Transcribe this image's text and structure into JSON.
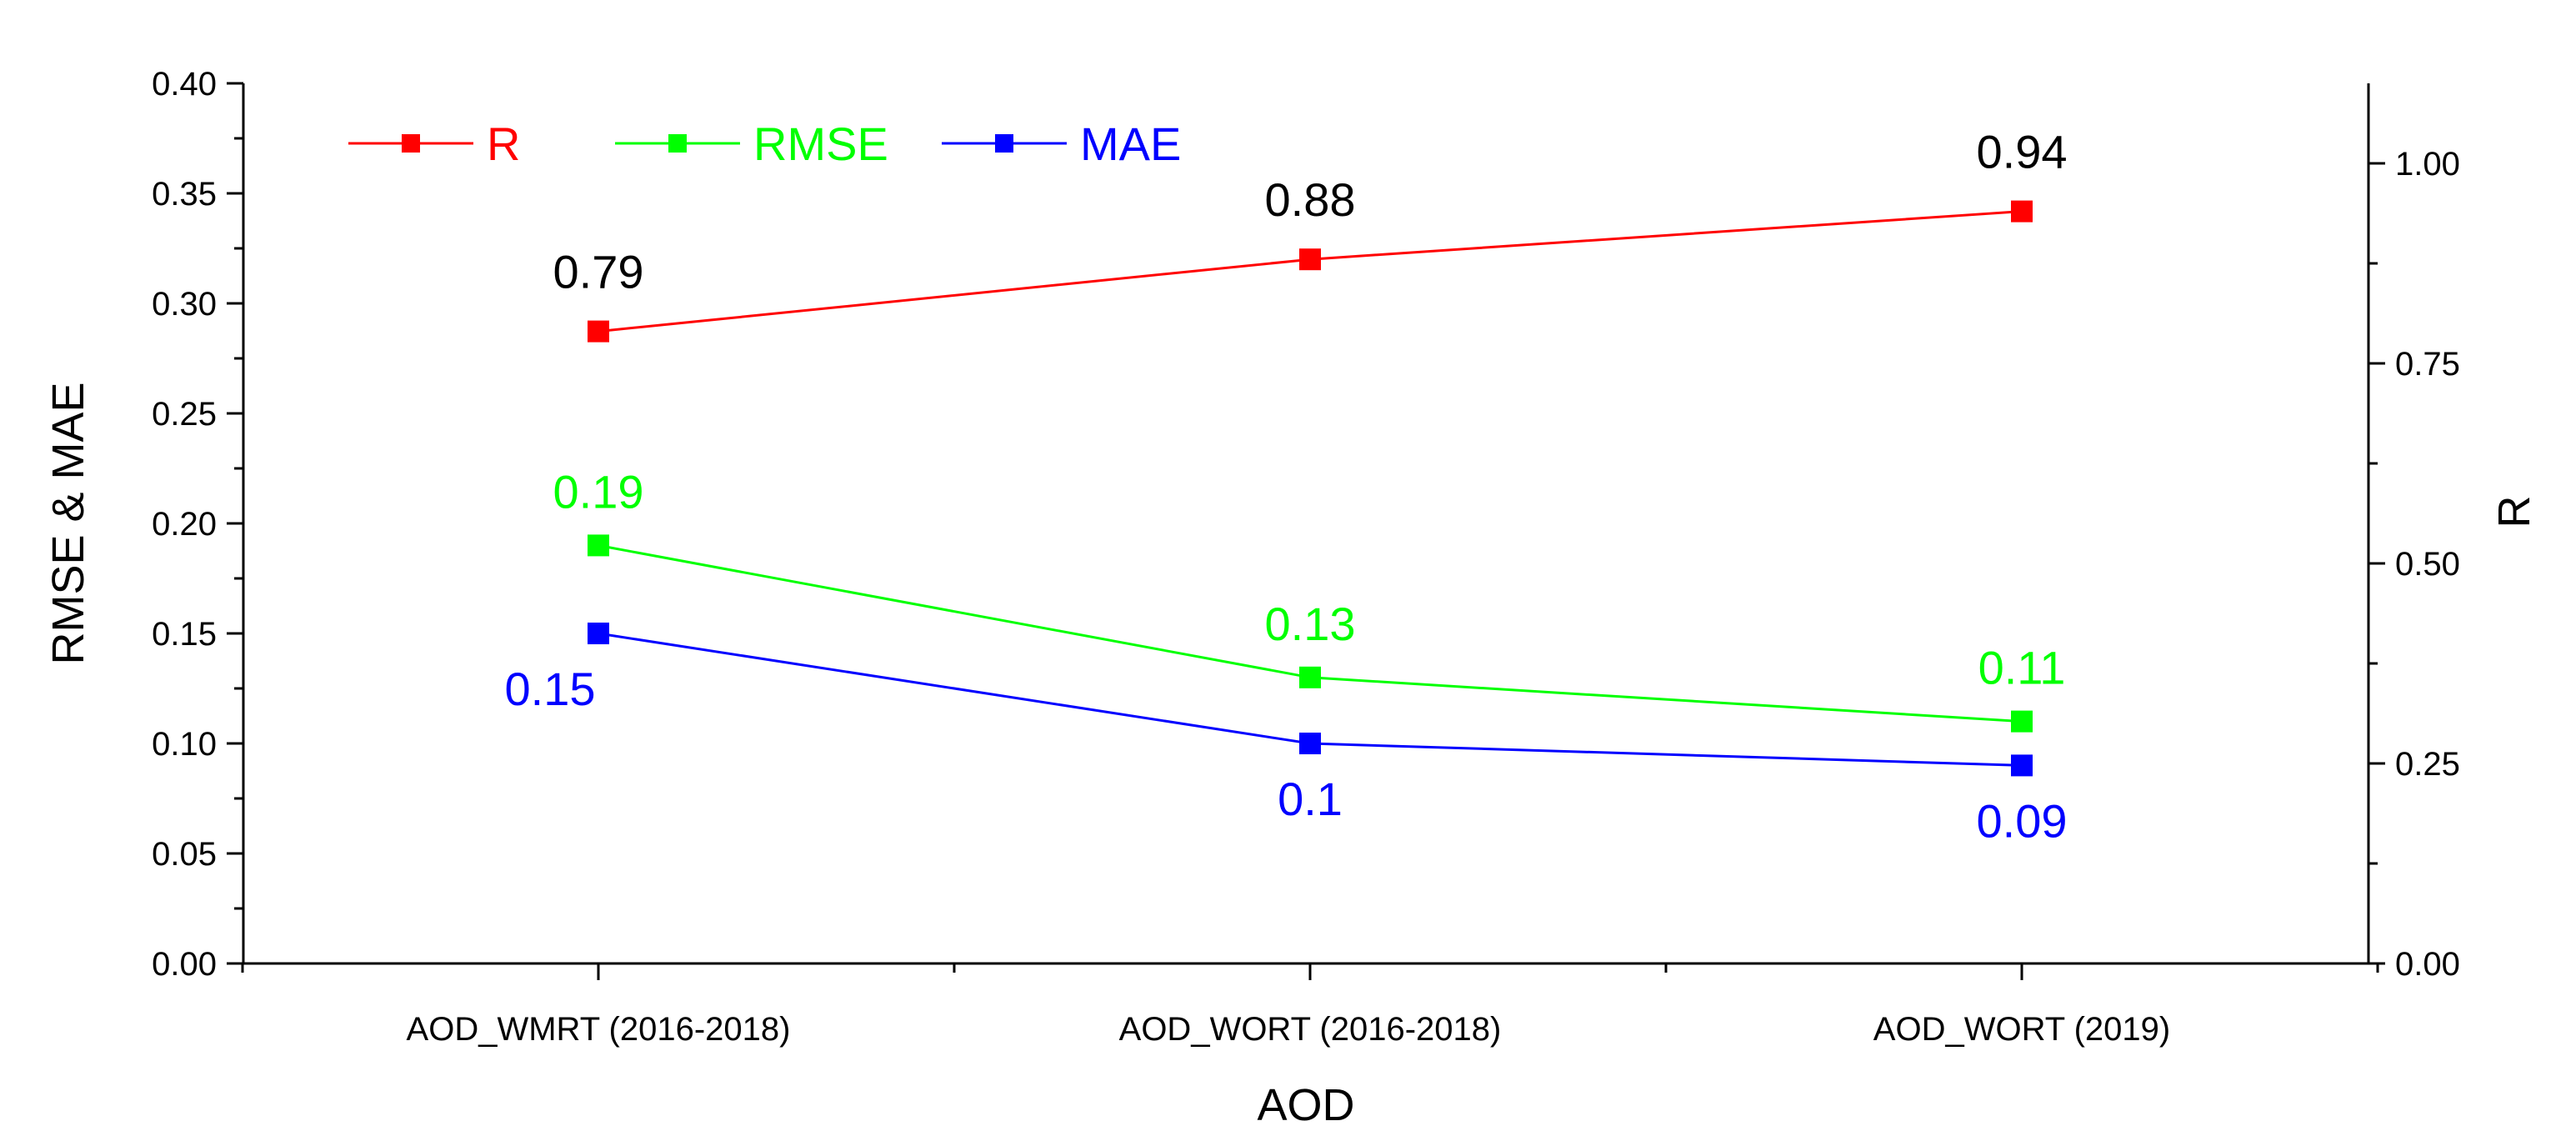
{
  "chart_data": {
    "type": "line",
    "categories": [
      "AOD_WMRT (2016-2018)",
      "AOD_WORT (2016-2018)",
      "AOD_WORT (2019)"
    ],
    "xlabel": "AOD",
    "ylabel_left": "RMSE & MAE",
    "ylabel_right": "R",
    "ylim_left": [
      0,
      0.4
    ],
    "yticks_left": [
      "0.00",
      "0.05",
      "0.10",
      "0.15",
      "0.20",
      "0.25",
      "0.30",
      "0.35",
      "0.40"
    ],
    "ylim_right": [
      0,
      1.1
    ],
    "yticks_right": [
      "0.00",
      "0.25",
      "0.50",
      "0.75",
      "1.00"
    ],
    "grid": false,
    "legend_position": "top-left",
    "series": [
      {
        "name": "R",
        "axis": "right",
        "color": "#ff0000",
        "values": [
          0.79,
          0.88,
          0.94
        ],
        "labels": [
          "0.79",
          "0.88",
          "0.94"
        ],
        "label_color": "#000000"
      },
      {
        "name": "RMSE",
        "axis": "left",
        "color": "#00ff00",
        "values": [
          0.19,
          0.13,
          0.11
        ],
        "labels": [
          "0.19",
          "0.13",
          "0.11"
        ],
        "label_color": "#00ff00"
      },
      {
        "name": "MAE",
        "axis": "left",
        "color": "#0000ff",
        "values": [
          0.15,
          0.1,
          0.09
        ],
        "labels": [
          "0.15",
          "0.1",
          "0.09"
        ],
        "label_color": "#0000ff"
      }
    ]
  }
}
